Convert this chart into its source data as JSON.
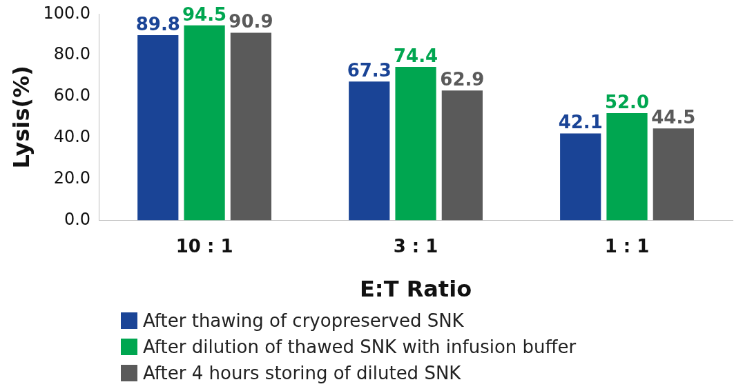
{
  "chart_data": {
    "type": "bar",
    "xlabel": "E:T Ratio",
    "ylabel": "Lysis(%)",
    "categories": [
      "10 : 1",
      "3 : 1",
      "1 : 1"
    ],
    "series": [
      {
        "name": "After thawing of cryopreserved SNK",
        "color": "#1a4496",
        "values": [
          89.8,
          67.3,
          42.1
        ],
        "value_labels": [
          "89.8",
          "67.3",
          "42.1"
        ]
      },
      {
        "name": "After dilution of thawed SNK with infusion buffer",
        "color": "#00a650",
        "values": [
          94.5,
          74.4,
          52.0
        ],
        "value_labels": [
          "94.5",
          "74.4",
          "52.0"
        ]
      },
      {
        "name": "After 4 hours storing of diluted SNK",
        "color": "#5a5a5a",
        "values": [
          90.9,
          62.9,
          44.5
        ],
        "value_labels": [
          "90.9",
          "62.9",
          "44.5"
        ]
      }
    ],
    "ylim": [
      0,
      100
    ],
    "yticks": [
      {
        "value": 0,
        "label": "0.0"
      },
      {
        "value": 20,
        "label": "20.0"
      },
      {
        "value": 40,
        "label": "40.0"
      },
      {
        "value": 60,
        "label": "60.0"
      },
      {
        "value": 80,
        "label": "80.0"
      },
      {
        "value": 100,
        "label": "100.0"
      }
    ],
    "grid": false,
    "legend": "bottom"
  }
}
